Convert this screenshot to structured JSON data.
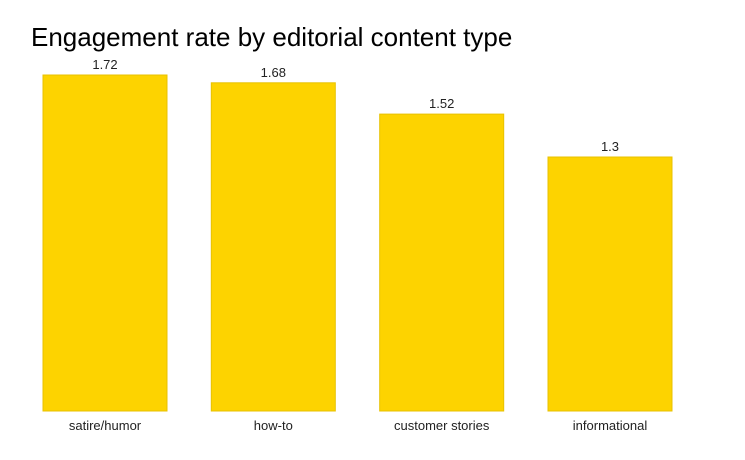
{
  "chart_data": {
    "type": "bar",
    "title": "Engagement rate by editorial content type",
    "categories": [
      "satire/humor",
      "how-to",
      "customer stories",
      "informational"
    ],
    "values": [
      1.72,
      1.68,
      1.52,
      1.3
    ],
    "value_labels": [
      "1.72",
      "1.68",
      "1.52",
      "1.3"
    ],
    "xlabel": "",
    "ylabel": "",
    "ylim": [
      0,
      1.72
    ],
    "grid": false,
    "legend": "none",
    "colors": {
      "bar_fill": "#FDD300",
      "bar_stroke": "#E8C200",
      "label_text": "#222222",
      "title_text": "#000000"
    }
  }
}
